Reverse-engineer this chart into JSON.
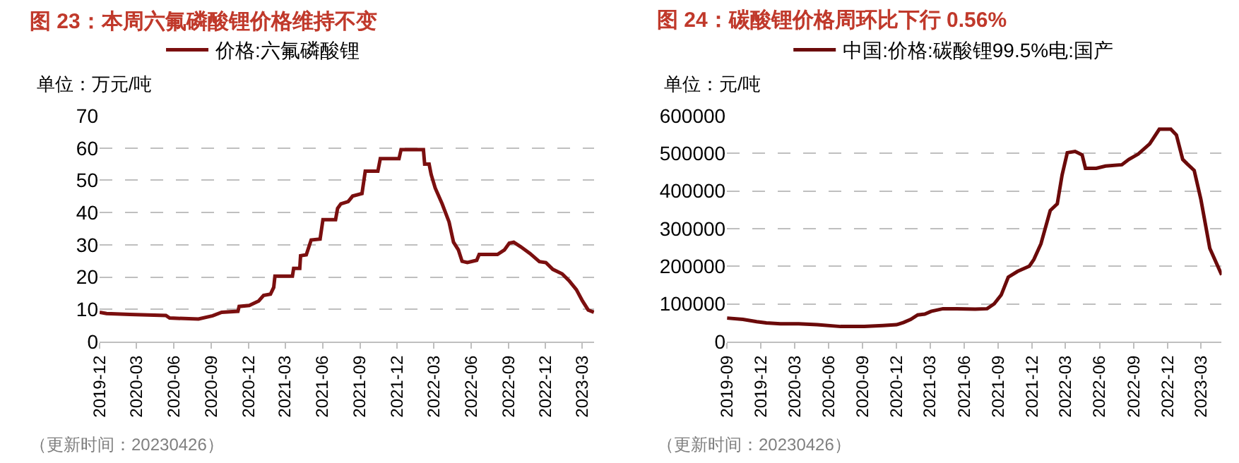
{
  "chart_data": [
    {
      "type": "line",
      "title": "图 23：本周六氟磷酸锂价格维持不变",
      "ylabel": "单位：万元/吨",
      "annotations": [
        "（更新时间：20230426）"
      ],
      "legend": "top",
      "grid": "y",
      "line_style": "solid",
      "marker": "none",
      "xlim": [
        "2019-12-01",
        "2023-03-31"
      ],
      "ylim": [
        0,
        70
      ],
      "yticks": [
        0,
        10,
        20,
        30,
        40,
        50,
        60,
        70
      ],
      "xticks": [
        "2019-12",
        "2020-03",
        "2020-06",
        "2020-09",
        "2020-12",
        "2021-03",
        "2021-06",
        "2021-09",
        "2021-12",
        "2022-03",
        "2022-06",
        "2022-09",
        "2022-12",
        "2023-03"
      ],
      "x": [
        "2019-12-01",
        "2019-12-18",
        "2020-02-13",
        "2020-05-12",
        "2020-05-21",
        "2020-07-31",
        "2020-09-04",
        "2020-09-26",
        "2020-11-05",
        "2020-11-08",
        "2020-12-03",
        "2020-12-26",
        "2021-01-07",
        "2021-01-24",
        "2021-02-01",
        "2021-02-04",
        "2021-03-19",
        "2021-03-22",
        "2021-04-06",
        "2021-04-08",
        "2021-04-22",
        "2021-05-04",
        "2021-05-26",
        "2021-06-02",
        "2021-07-03",
        "2021-07-08",
        "2021-07-16",
        "2021-08-03",
        "2021-08-14",
        "2021-09-06",
        "2021-09-14",
        "2021-10-15",
        "2021-10-21",
        "2021-12-06",
        "2021-12-11",
        "2022-02-04",
        "2022-02-07",
        "2022-02-18",
        "2022-02-23",
        "2022-03-05",
        "2022-03-22",
        "2022-04-08",
        "2022-04-19",
        "2022-05-01",
        "2022-05-10",
        "2022-05-23",
        "2022-06-15",
        "2022-06-21",
        "2022-08-05",
        "2022-08-22",
        "2022-09-03",
        "2022-09-14",
        "2022-10-01",
        "2022-10-24",
        "2022-11-16",
        "2022-12-02",
        "2022-12-19",
        "2023-01-11",
        "2023-01-28",
        "2023-02-15",
        "2023-03-02",
        "2023-03-16",
        "2023-03-30"
      ],
      "series": [
        {
          "name": "价格:六氟磷酸锂",
          "color": "#7b0f0f",
          "values": [
            9.1,
            8.7,
            8.4,
            8.1,
            7.3,
            7.0,
            8.0,
            9.1,
            9.4,
            10.9,
            11.2,
            12.6,
            14.3,
            14.7,
            16.8,
            20.3,
            20.3,
            22.7,
            22.7,
            26.6,
            26.9,
            31.5,
            31.8,
            37.8,
            37.8,
            41.3,
            42.7,
            43.4,
            45.1,
            45.9,
            52.8,
            52.8,
            56.7,
            56.7,
            59.5,
            59.5,
            55.0,
            55.0,
            51.8,
            47.6,
            42.7,
            37.1,
            30.8,
            28.4,
            24.9,
            24.5,
            25.2,
            27.0,
            27.0,
            28.4,
            30.5,
            30.8,
            29.4,
            27.3,
            24.8,
            24.5,
            22.4,
            21.0,
            18.9,
            16.1,
            12.6,
            9.8,
            9.1
          ]
        }
      ]
    },
    {
      "type": "line",
      "title": "图 24：碳酸锂价格周环比下行 0.56%",
      "ylabel": "单位：元/吨",
      "annotations": [
        "（更新时间：20230426）"
      ],
      "legend": "top",
      "grid": "y",
      "line_style": "solid",
      "marker": "none",
      "xlim": [
        "2019-09-01",
        "2023-04-26"
      ],
      "ylim": [
        0,
        600000
      ],
      "yticks": [
        0,
        100000,
        200000,
        300000,
        400000,
        500000,
        600000
      ],
      "xticks": [
        "2019-09",
        "2019-12",
        "2020-03",
        "2020-06",
        "2020-09",
        "2020-12",
        "2021-03",
        "2021-06",
        "2021-09",
        "2021-12",
        "2022-03",
        "2022-06",
        "2022-09",
        "2022-12",
        "2023-03"
      ],
      "x": [
        "2019-09-01",
        "2019-10-14",
        "2019-11-20",
        "2019-12-16",
        "2020-01-23",
        "2020-03-12",
        "2020-05-01",
        "2020-07-03",
        "2020-09-05",
        "2020-10-25",
        "2020-12-01",
        "2020-12-20",
        "2021-01-08",
        "2021-01-27",
        "2021-02-15",
        "2021-03-04",
        "2021-04-05",
        "2021-05-12",
        "2021-07-01",
        "2021-08-02",
        "2021-08-21",
        "2021-09-09",
        "2021-09-28",
        "2021-10-23",
        "2021-11-24",
        "2021-12-06",
        "2021-12-25",
        "2022-01-19",
        "2022-02-07",
        "2022-02-20",
        "2022-03-06",
        "2022-03-27",
        "2022-04-15",
        "2022-04-24",
        "2022-05-23",
        "2022-06-17",
        "2022-07-31",
        "2022-08-19",
        "2022-09-13",
        "2022-10-14",
        "2022-11-09",
        "2022-12-10",
        "2022-12-25",
        "2023-01-11",
        "2023-01-23",
        "2023-02-11",
        "2023-03-01",
        "2023-03-25",
        "2023-04-26"
      ],
      "series": [
        {
          "name": "中国:价格:碳酸锂99.5%电:国产",
          "color": "#6b0a0a",
          "values": [
            62600,
            59000,
            53100,
            49600,
            47200,
            47200,
            44900,
            40100,
            40100,
            42500,
            44900,
            50800,
            59000,
            70800,
            73200,
            80300,
            87400,
            87400,
            86200,
            87400,
            100400,
            124000,
            171200,
            186500,
            200700,
            218400,
            259700,
            348300,
            366000,
            442700,
            501800,
            505300,
            495900,
            460400,
            460400,
            466300,
            469900,
            484000,
            498200,
            525400,
            564300,
            564300,
            549000,
            484000,
            472300,
            454600,
            377800,
            247900,
            177100
          ]
        }
      ]
    }
  ]
}
